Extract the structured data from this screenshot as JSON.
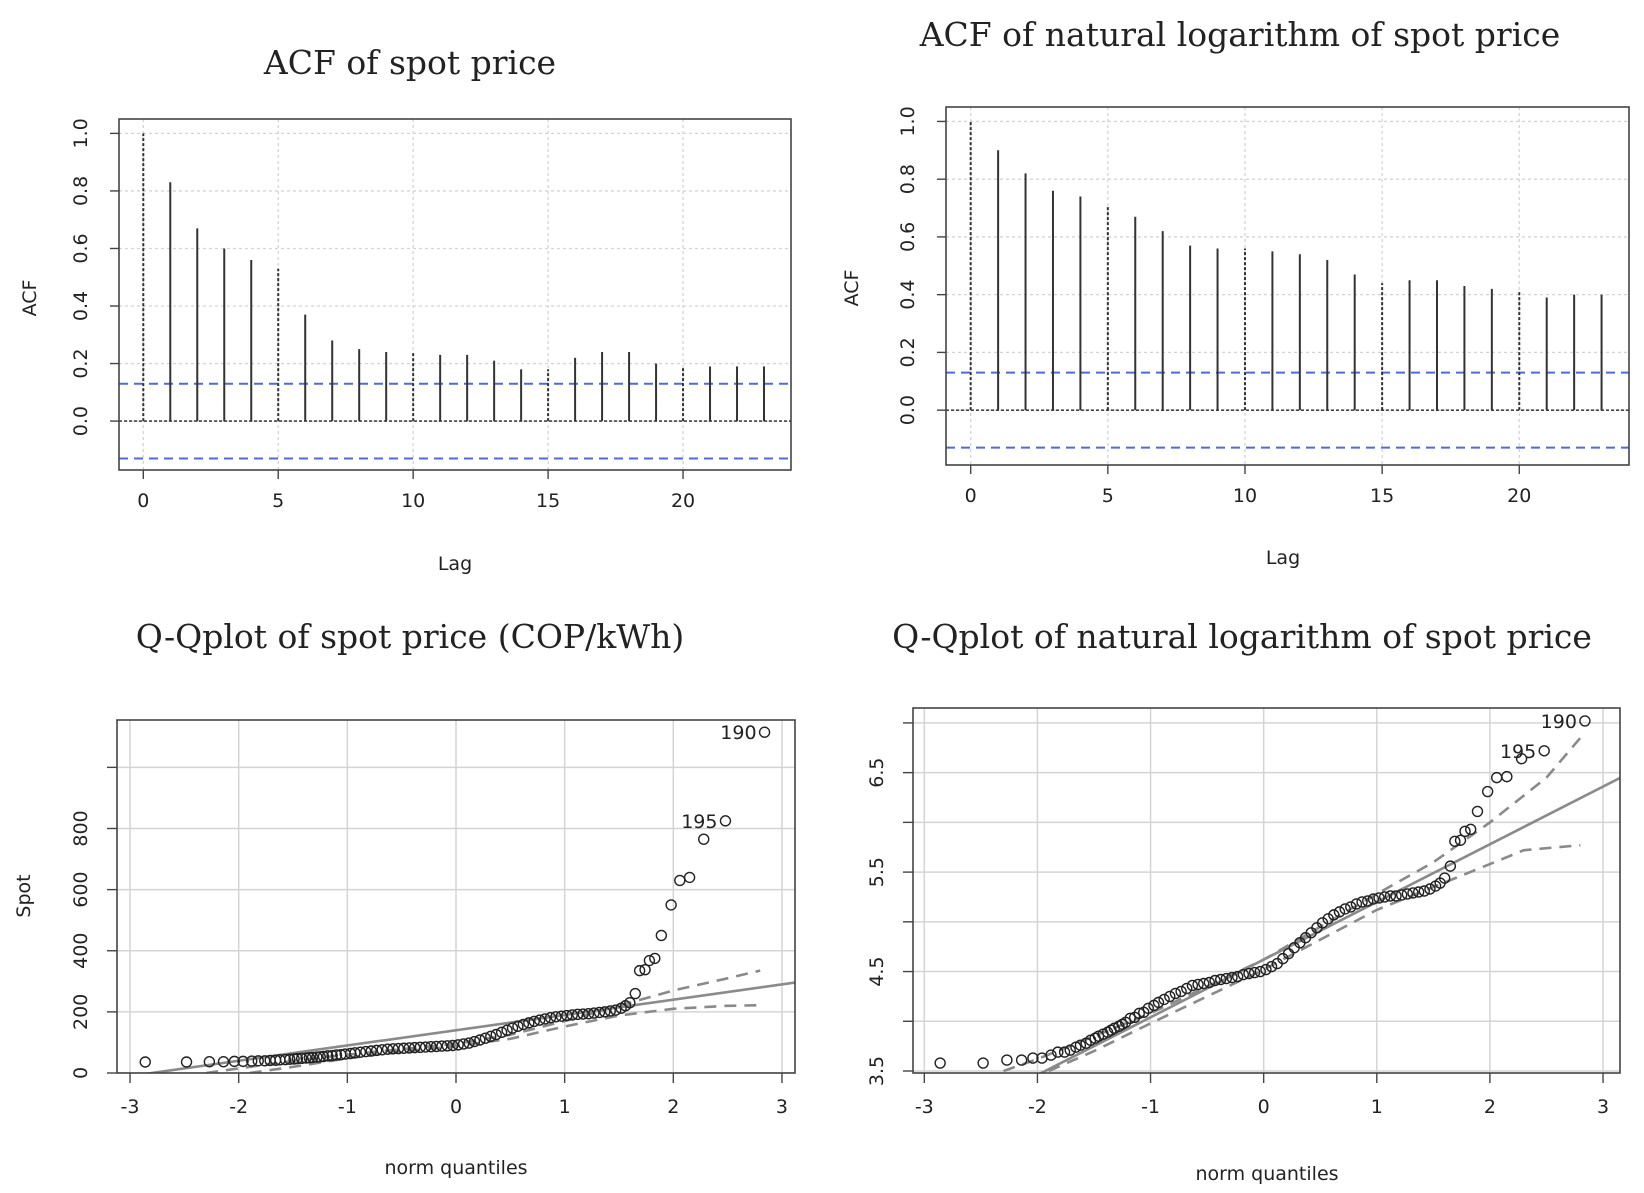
{
  "chart_data": [
    {
      "type": "bar",
      "id": "acf_spot",
      "title": "ACF of spot price",
      "xlabel": "Lag",
      "ylabel": "ACF",
      "xlim": [
        -0.9,
        24
      ],
      "ylim": [
        -0.17,
        1.05
      ],
      "x_ticks": [
        0,
        5,
        10,
        15,
        20
      ],
      "y_ticks": [
        0.0,
        0.2,
        0.4,
        0.6,
        0.8,
        1.0
      ],
      "x_tick_labels": [
        "0",
        "5",
        "10",
        "15",
        "20"
      ],
      "y_tick_labels": [
        "0.0",
        "0.2",
        "0.4",
        "0.6",
        "0.8",
        "1.0"
      ],
      "lags": [
        0,
        1,
        2,
        3,
        4,
        5,
        6,
        7,
        8,
        9,
        10,
        11,
        12,
        13,
        14,
        15,
        16,
        17,
        18,
        19,
        20,
        21,
        22,
        23
      ],
      "values": [
        1.0,
        0.83,
        0.67,
        0.6,
        0.56,
        0.53,
        0.37,
        0.28,
        0.25,
        0.24,
        0.24,
        0.23,
        0.23,
        0.21,
        0.18,
        0.18,
        0.22,
        0.24,
        0.24,
        0.2,
        0.19,
        0.19,
        0.19,
        0.19
      ],
      "conf_bound": 0.13,
      "grid": true,
      "colors": {
        "bars": "#333333",
        "conf": "#4f6bd9",
        "grid": "#d4d4d4"
      }
    },
    {
      "type": "bar",
      "id": "acf_log",
      "title": "ACF of natural logarithm of spot price",
      "xlabel": "Lag",
      "ylabel": "ACF",
      "xlim": [
        -0.9,
        24
      ],
      "ylim": [
        -0.19,
        1.05
      ],
      "x_ticks": [
        0,
        5,
        10,
        15,
        20
      ],
      "y_ticks": [
        0.0,
        0.2,
        0.4,
        0.6,
        0.8,
        1.0
      ],
      "x_tick_labels": [
        "0",
        "5",
        "10",
        "15",
        "20"
      ],
      "y_tick_labels": [
        "0.0",
        "0.2",
        "0.4",
        "0.6",
        "0.8",
        "1.0"
      ],
      "lags": [
        0,
        1,
        2,
        3,
        4,
        5,
        6,
        7,
        8,
        9,
        10,
        11,
        12,
        13,
        14,
        15,
        16,
        17,
        18,
        19,
        20,
        21,
        22,
        23
      ],
      "values": [
        1.0,
        0.9,
        0.82,
        0.76,
        0.74,
        0.71,
        0.67,
        0.62,
        0.57,
        0.56,
        0.56,
        0.55,
        0.54,
        0.52,
        0.47,
        0.44,
        0.45,
        0.45,
        0.43,
        0.42,
        0.41,
        0.39,
        0.4,
        0.4
      ],
      "conf_bound": 0.13,
      "grid": true,
      "colors": {
        "bars": "#333333",
        "conf": "#4f6bd9",
        "grid": "#d4d4d4"
      }
    },
    {
      "type": "scatter",
      "id": "qq_spot",
      "title": "Q-Qplot of spot price (COP/kWh)",
      "xlabel": "norm quantiles",
      "ylabel": "Spot",
      "xlim": [
        -3.12,
        3.12
      ],
      "ylim": [
        0,
        1155
      ],
      "x_ticks": [
        -3,
        -2,
        -1,
        0,
        1,
        2,
        3
      ],
      "x_tick_labels": [
        "-3",
        "-2",
        "-1",
        "0",
        "1",
        "2",
        "3"
      ],
      "y_ticks": [
        0,
        200,
        400,
        600,
        800,
        1000
      ],
      "y_tick_labels": [
        "0",
        "200",
        "400",
        "600",
        "800",
        ""
      ],
      "points": [
        [
          -2.86,
          36
        ],
        [
          -2.48,
          36
        ],
        [
          -2.27,
          37
        ],
        [
          -2.14,
          37
        ],
        [
          -2.04,
          38
        ],
        [
          -1.96,
          38
        ],
        [
          -1.88,
          39
        ],
        [
          -1.82,
          40
        ],
        [
          -1.76,
          40
        ],
        [
          -1.71,
          41
        ],
        [
          -1.66,
          42
        ],
        [
          -1.62,
          43
        ],
        [
          -1.57,
          44
        ],
        [
          -1.53,
          45
        ],
        [
          -1.49,
          46
        ],
        [
          -1.46,
          47
        ],
        [
          -1.42,
          48
        ],
        [
          -1.38,
          49
        ],
        [
          -1.35,
          50
        ],
        [
          -1.32,
          51
        ],
        [
          -1.28,
          52
        ],
        [
          -1.25,
          53
        ],
        [
          -1.22,
          54
        ],
        [
          -1.18,
          56
        ],
        [
          -1.14,
          57
        ],
        [
          -1.1,
          59
        ],
        [
          -1.06,
          60
        ],
        [
          -1.02,
          62
        ],
        [
          -0.97,
          64
        ],
        [
          -0.93,
          66
        ],
        [
          -0.88,
          68
        ],
        [
          -0.83,
          70
        ],
        [
          -0.78,
          72
        ],
        [
          -0.73,
          74
        ],
        [
          -0.68,
          76
        ],
        [
          -0.63,
          78
        ],
        [
          -0.58,
          79
        ],
        [
          -0.53,
          80
        ],
        [
          -0.48,
          81
        ],
        [
          -0.43,
          82
        ],
        [
          -0.38,
          83
        ],
        [
          -0.33,
          84
        ],
        [
          -0.28,
          85
        ],
        [
          -0.23,
          86
        ],
        [
          -0.18,
          87
        ],
        [
          -0.13,
          88
        ],
        [
          -0.08,
          89
        ],
        [
          -0.03,
          90
        ],
        [
          0.02,
          92
        ],
        [
          0.07,
          95
        ],
        [
          0.12,
          98
        ],
        [
          0.17,
          103
        ],
        [
          0.22,
          108
        ],
        [
          0.27,
          114
        ],
        [
          0.32,
          120
        ],
        [
          0.37,
          126
        ],
        [
          0.42,
          133
        ],
        [
          0.47,
          140
        ],
        [
          0.52,
          147
        ],
        [
          0.57,
          153
        ],
        [
          0.62,
          159
        ],
        [
          0.67,
          164
        ],
        [
          0.72,
          169
        ],
        [
          0.77,
          173
        ],
        [
          0.82,
          177
        ],
        [
          0.87,
          181
        ],
        [
          0.92,
          184
        ],
        [
          0.97,
          186
        ],
        [
          1.02,
          188
        ],
        [
          1.07,
          190
        ],
        [
          1.12,
          192
        ],
        [
          1.17,
          193
        ],
        [
          1.22,
          194
        ],
        [
          1.27,
          196
        ],
        [
          1.32,
          198
        ],
        [
          1.37,
          200
        ],
        [
          1.42,
          203
        ],
        [
          1.47,
          206
        ],
        [
          1.52,
          212
        ],
        [
          1.56,
          220
        ],
        [
          1.6,
          230
        ],
        [
          1.65,
          260
        ],
        [
          1.69,
          335
        ],
        [
          1.74,
          338
        ],
        [
          1.78,
          368
        ],
        [
          1.83,
          375
        ],
        [
          1.89,
          450
        ],
        [
          1.98,
          550
        ],
        [
          2.06,
          630
        ],
        [
          2.15,
          640
        ],
        [
          2.28,
          765
        ],
        [
          2.48,
          825
        ],
        [
          2.84,
          1115
        ]
      ],
      "reference_line": {
        "intercept": 140.0,
        "slope": 50.0
      },
      "envelope_upper": [
        [
          -2.3,
          0
        ],
        [
          -2.0,
          15
        ],
        [
          -1.5,
          40
        ],
        [
          -1.0,
          60
        ],
        [
          -0.5,
          78
        ],
        [
          0.0,
          96
        ],
        [
          0.5,
          125
        ],
        [
          1.0,
          170
        ],
        [
          1.5,
          220
        ],
        [
          2.0,
          270
        ],
        [
          2.5,
          310
        ],
        [
          2.8,
          335
        ]
      ],
      "envelope_lower": [
        [
          -1.9,
          0
        ],
        [
          -1.5,
          20
        ],
        [
          -1.0,
          48
        ],
        [
          -0.5,
          70
        ],
        [
          0.0,
          88
        ],
        [
          0.5,
          112
        ],
        [
          1.0,
          152
        ],
        [
          1.5,
          188
        ],
        [
          2.0,
          210
        ],
        [
          2.5,
          220
        ],
        [
          2.8,
          222
        ]
      ],
      "annotations": [
        {
          "label": "190",
          "x": 2.84,
          "y": 1115
        },
        {
          "label": "195",
          "x": 2.48,
          "y": 825
        }
      ],
      "colors": {
        "points": "#222222",
        "line": "#8a8a8a",
        "grid": "#d4d4d4"
      }
    },
    {
      "type": "scatter",
      "id": "qq_log",
      "title": "Q-Qplot of natural logarithm of spot price",
      "xlabel": "norm quantiles",
      "ylabel": "",
      "xlim": [
        -3.1,
        3.15
      ],
      "ylim": [
        3.48,
        7.15
      ],
      "x_ticks": [
        -3,
        -2,
        -1,
        0,
        1,
        2,
        3
      ],
      "x_tick_labels": [
        "-3",
        "-2",
        "-1",
        "0",
        "1",
        "2",
        "3"
      ],
      "y_ticks": [
        3.5,
        4.0,
        4.5,
        5.0,
        5.5,
        6.0,
        6.5,
        7.0
      ],
      "y_tick_labels": [
        "3.5",
        "",
        "4.5",
        "",
        "5.5",
        "",
        "6.5",
        ""
      ],
      "points": [
        [
          -2.86,
          3.58
        ],
        [
          -2.48,
          3.58
        ],
        [
          -2.27,
          3.61
        ],
        [
          -2.14,
          3.61
        ],
        [
          -2.04,
          3.63
        ],
        [
          -1.96,
          3.63
        ],
        [
          -1.88,
          3.66
        ],
        [
          -1.82,
          3.69
        ],
        [
          -1.76,
          3.69
        ],
        [
          -1.71,
          3.71
        ],
        [
          -1.66,
          3.74
        ],
        [
          -1.62,
          3.76
        ],
        [
          -1.57,
          3.78
        ],
        [
          -1.53,
          3.81
        ],
        [
          -1.49,
          3.83
        ],
        [
          -1.46,
          3.85
        ],
        [
          -1.42,
          3.87
        ],
        [
          -1.38,
          3.89
        ],
        [
          -1.35,
          3.91
        ],
        [
          -1.32,
          3.93
        ],
        [
          -1.28,
          3.95
        ],
        [
          -1.25,
          3.97
        ],
        [
          -1.22,
          3.99
        ],
        [
          -1.18,
          4.03
        ],
        [
          -1.14,
          4.04
        ],
        [
          -1.1,
          4.08
        ],
        [
          -1.06,
          4.09
        ],
        [
          -1.02,
          4.13
        ],
        [
          -0.97,
          4.16
        ],
        [
          -0.93,
          4.19
        ],
        [
          -0.88,
          4.22
        ],
        [
          -0.83,
          4.25
        ],
        [
          -0.78,
          4.28
        ],
        [
          -0.73,
          4.3
        ],
        [
          -0.68,
          4.33
        ],
        [
          -0.63,
          4.36
        ],
        [
          -0.58,
          4.37
        ],
        [
          -0.53,
          4.38
        ],
        [
          -0.48,
          4.39
        ],
        [
          -0.43,
          4.41
        ],
        [
          -0.38,
          4.42
        ],
        [
          -0.33,
          4.43
        ],
        [
          -0.28,
          4.44
        ],
        [
          -0.23,
          4.45
        ],
        [
          -0.18,
          4.47
        ],
        [
          -0.13,
          4.48
        ],
        [
          -0.08,
          4.49
        ],
        [
          -0.03,
          4.5
        ],
        [
          0.02,
          4.52
        ],
        [
          0.07,
          4.55
        ],
        [
          0.12,
          4.58
        ],
        [
          0.17,
          4.63
        ],
        [
          0.22,
          4.68
        ],
        [
          0.27,
          4.74
        ],
        [
          0.32,
          4.79
        ],
        [
          0.37,
          4.84
        ],
        [
          0.42,
          4.89
        ],
        [
          0.47,
          4.94
        ],
        [
          0.52,
          4.99
        ],
        [
          0.57,
          5.03
        ],
        [
          0.62,
          5.07
        ],
        [
          0.67,
          5.1
        ],
        [
          0.72,
          5.13
        ],
        [
          0.77,
          5.15
        ],
        [
          0.82,
          5.18
        ],
        [
          0.87,
          5.2
        ],
        [
          0.92,
          5.21
        ],
        [
          0.97,
          5.23
        ],
        [
          1.02,
          5.24
        ],
        [
          1.07,
          5.25
        ],
        [
          1.12,
          5.26
        ],
        [
          1.17,
          5.26
        ],
        [
          1.22,
          5.27
        ],
        [
          1.27,
          5.28
        ],
        [
          1.32,
          5.29
        ],
        [
          1.37,
          5.3
        ],
        [
          1.42,
          5.31
        ],
        [
          1.47,
          5.33
        ],
        [
          1.52,
          5.36
        ],
        [
          1.56,
          5.39
        ],
        [
          1.6,
          5.44
        ],
        [
          1.65,
          5.56
        ],
        [
          1.69,
          5.81
        ],
        [
          1.74,
          5.82
        ],
        [
          1.78,
          5.91
        ],
        [
          1.83,
          5.93
        ],
        [
          1.89,
          6.11
        ],
        [
          1.98,
          6.31
        ],
        [
          2.06,
          6.45
        ],
        [
          2.15,
          6.46
        ],
        [
          2.28,
          6.64
        ],
        [
          2.48,
          6.72
        ],
        [
          2.84,
          7.02
        ]
      ],
      "reference_line": {
        "intercept": 4.62,
        "slope": 0.58
      },
      "envelope_upper": [
        [
          -2.3,
          3.5
        ],
        [
          -2.0,
          3.62
        ],
        [
          -1.5,
          3.85
        ],
        [
          -1.0,
          4.08
        ],
        [
          -0.5,
          4.35
        ],
        [
          0.0,
          4.62
        ],
        [
          0.5,
          4.95
        ],
        [
          1.0,
          5.28
        ],
        [
          1.5,
          5.6
        ],
        [
          2.0,
          6.0
        ],
        [
          2.5,
          6.45
        ],
        [
          2.8,
          6.85
        ]
      ],
      "envelope_lower": [
        [
          -1.9,
          3.5
        ],
        [
          -1.5,
          3.7
        ],
        [
          -1.0,
          3.98
        ],
        [
          -0.5,
          4.25
        ],
        [
          0.0,
          4.52
        ],
        [
          0.5,
          4.82
        ],
        [
          1.0,
          5.12
        ],
        [
          1.5,
          5.35
        ],
        [
          2.0,
          5.58
        ],
        [
          2.3,
          5.72
        ],
        [
          2.8,
          5.77
        ]
      ],
      "annotations": [
        {
          "label": "190",
          "x": 2.84,
          "y": 7.02
        },
        {
          "label": "195",
          "x": 2.48,
          "y": 6.72
        }
      ],
      "colors": {
        "points": "#222222",
        "line": "#8a8a8a",
        "grid": "#d4d4d4"
      }
    }
  ]
}
